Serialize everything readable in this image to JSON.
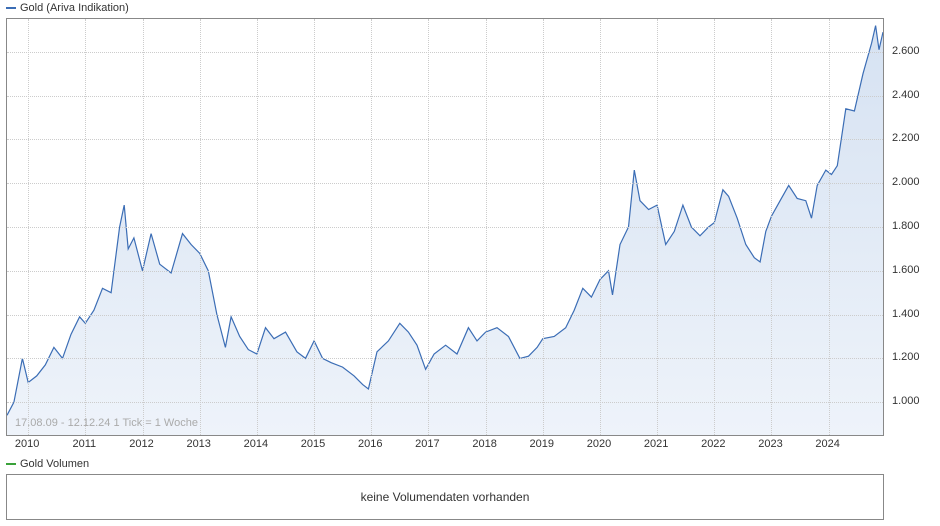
{
  "legend": {
    "main_label": "Gold (Ariva Indikation)",
    "main_color": "#3b6db5",
    "volume_label": "Gold Volumen",
    "volume_color": "#3aa23a"
  },
  "date_range_text": "17.08.09 - 12.12.24    1 Tick = 1 Woche",
  "volume_empty_text": "keine Volumendaten vorhanden",
  "chart": {
    "type": "area",
    "background_color": "#ffffff",
    "border_color": "#888888",
    "grid_color": "#cccccc",
    "line_color": "#3b6db5",
    "fill_top_color": "#d6e2f2",
    "fill_bottom_color": "#eef3fa",
    "line_width": 1.2,
    "ylim": [
      850,
      2750
    ],
    "y_ticks": [
      1000,
      1200,
      1400,
      1600,
      1800,
      2000,
      2200,
      2400,
      2600
    ],
    "y_tick_labels": [
      "1.000",
      "1.200",
      "1.400",
      "1.600",
      "1.800",
      "2.000",
      "2.200",
      "2.400",
      "2.600"
    ],
    "x_years": [
      "2010",
      "2011",
      "2012",
      "2013",
      "2014",
      "2015",
      "2016",
      "2017",
      "2018",
      "2019",
      "2020",
      "2021",
      "2022",
      "2023",
      "2024"
    ],
    "x_start": 2009.63,
    "x_end": 2024.95,
    "title_fontsize": 11,
    "label_fontsize": 11,
    "series": [
      [
        2009.63,
        940
      ],
      [
        2009.75,
        1000
      ],
      [
        2009.9,
        1200
      ],
      [
        2010.0,
        1090
      ],
      [
        2010.15,
        1120
      ],
      [
        2010.3,
        1170
      ],
      [
        2010.45,
        1250
      ],
      [
        2010.6,
        1200
      ],
      [
        2010.75,
        1310
      ],
      [
        2010.9,
        1390
      ],
      [
        2011.0,
        1360
      ],
      [
        2011.15,
        1420
      ],
      [
        2011.3,
        1520
      ],
      [
        2011.45,
        1500
      ],
      [
        2011.6,
        1800
      ],
      [
        2011.68,
        1900
      ],
      [
        2011.75,
        1700
      ],
      [
        2011.85,
        1750
      ],
      [
        2012.0,
        1600
      ],
      [
        2012.15,
        1770
      ],
      [
        2012.3,
        1630
      ],
      [
        2012.5,
        1590
      ],
      [
        2012.7,
        1770
      ],
      [
        2012.85,
        1720
      ],
      [
        2013.0,
        1680
      ],
      [
        2013.15,
        1600
      ],
      [
        2013.3,
        1400
      ],
      [
        2013.45,
        1250
      ],
      [
        2013.55,
        1390
      ],
      [
        2013.7,
        1300
      ],
      [
        2013.85,
        1240
      ],
      [
        2014.0,
        1220
      ],
      [
        2014.15,
        1340
      ],
      [
        2014.3,
        1290
      ],
      [
        2014.5,
        1320
      ],
      [
        2014.7,
        1230
      ],
      [
        2014.85,
        1200
      ],
      [
        2015.0,
        1280
      ],
      [
        2015.15,
        1200
      ],
      [
        2015.3,
        1180
      ],
      [
        2015.5,
        1160
      ],
      [
        2015.7,
        1120
      ],
      [
        2015.85,
        1080
      ],
      [
        2015.95,
        1060
      ],
      [
        2016.1,
        1230
      ],
      [
        2016.3,
        1280
      ],
      [
        2016.5,
        1360
      ],
      [
        2016.65,
        1320
      ],
      [
        2016.8,
        1260
      ],
      [
        2016.95,
        1150
      ],
      [
        2017.1,
        1220
      ],
      [
        2017.3,
        1260
      ],
      [
        2017.5,
        1220
      ],
      [
        2017.7,
        1340
      ],
      [
        2017.85,
        1280
      ],
      [
        2018.0,
        1320
      ],
      [
        2018.2,
        1340
      ],
      [
        2018.4,
        1300
      ],
      [
        2018.6,
        1200
      ],
      [
        2018.75,
        1210
      ],
      [
        2018.9,
        1250
      ],
      [
        2019.0,
        1290
      ],
      [
        2019.2,
        1300
      ],
      [
        2019.4,
        1340
      ],
      [
        2019.55,
        1420
      ],
      [
        2019.7,
        1520
      ],
      [
        2019.85,
        1480
      ],
      [
        2020.0,
        1560
      ],
      [
        2020.15,
        1600
      ],
      [
        2020.22,
        1490
      ],
      [
        2020.35,
        1720
      ],
      [
        2020.5,
        1800
      ],
      [
        2020.6,
        2060
      ],
      [
        2020.7,
        1920
      ],
      [
        2020.85,
        1880
      ],
      [
        2021.0,
        1900
      ],
      [
        2021.15,
        1720
      ],
      [
        2021.3,
        1780
      ],
      [
        2021.45,
        1900
      ],
      [
        2021.6,
        1800
      ],
      [
        2021.75,
        1760
      ],
      [
        2021.9,
        1800
      ],
      [
        2022.0,
        1820
      ],
      [
        2022.15,
        1970
      ],
      [
        2022.25,
        1940
      ],
      [
        2022.4,
        1840
      ],
      [
        2022.55,
        1720
      ],
      [
        2022.7,
        1660
      ],
      [
        2022.8,
        1640
      ],
      [
        2022.9,
        1780
      ],
      [
        2023.0,
        1850
      ],
      [
        2023.15,
        1920
      ],
      [
        2023.3,
        1990
      ],
      [
        2023.45,
        1930
      ],
      [
        2023.6,
        1920
      ],
      [
        2023.7,
        1840
      ],
      [
        2023.8,
        1990
      ],
      [
        2023.95,
        2060
      ],
      [
        2024.05,
        2040
      ],
      [
        2024.15,
        2080
      ],
      [
        2024.3,
        2340
      ],
      [
        2024.45,
        2330
      ],
      [
        2024.6,
        2500
      ],
      [
        2024.75,
        2640
      ],
      [
        2024.82,
        2720
      ],
      [
        2024.88,
        2610
      ],
      [
        2024.95,
        2690
      ]
    ]
  }
}
